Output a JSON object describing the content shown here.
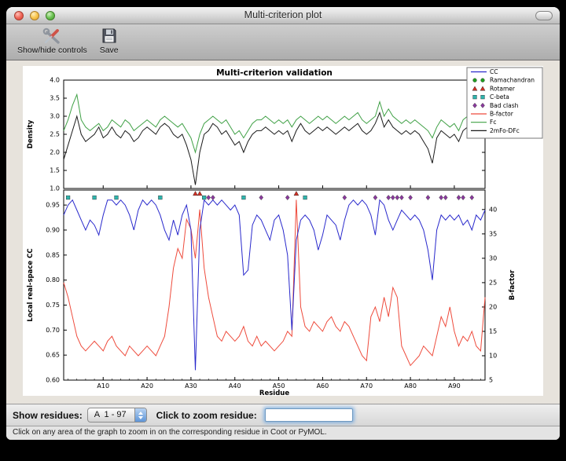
{
  "window": {
    "title": "Multi-criterion plot",
    "toolbar": {
      "buttons": [
        {
          "label": "Show/hide controls"
        },
        {
          "label": "Save"
        }
      ]
    },
    "controls": {
      "show_residues_label": "Show residues:",
      "residue_range_value": "A  1 - 97",
      "zoom_label": "Click to zoom residue:",
      "zoom_value": ""
    },
    "status_bar": "Click on any area of the graph to zoom in on the corresponding residue in Coot or PyMOL."
  },
  "chart_data": {
    "type": "line",
    "title": "Multi-criterion validation",
    "x_label": "Residue",
    "x_range": [
      1,
      97
    ],
    "x_tick_positions": [
      10,
      20,
      30,
      40,
      50,
      60,
      70,
      80,
      90
    ],
    "x_tick_labels": [
      "A10",
      "A20",
      "A30",
      "A40",
      "A50",
      "A60",
      "A70",
      "A80",
      "A90"
    ],
    "grid": false,
    "legend_position": "upper right",
    "legend": [
      {
        "label": "CC",
        "type": "line",
        "color": "#2929cc"
      },
      {
        "label": "Ramachandran",
        "type": "circle",
        "color": "#1f9e1f"
      },
      {
        "label": "Rotamer",
        "type": "triangle",
        "color": "#cf2f24"
      },
      {
        "label": "C-beta",
        "type": "square",
        "color": "#2fb5ae"
      },
      {
        "label": "Bad clash",
        "type": "diamond",
        "color": "#8b3a9e"
      },
      {
        "label": "B-factor",
        "type": "line",
        "color": "#ee4b3c"
      },
      {
        "label": "Fc",
        "type": "line",
        "color": "#3fa045"
      },
      {
        "label": "2mFo-DFc",
        "type": "line",
        "color": "#1a1a1a"
      }
    ],
    "top": {
      "y_label": "Density",
      "y_range": [
        1.0,
        4.0
      ],
      "y_ticks": [
        1.0,
        1.5,
        2.0,
        2.5,
        3.0,
        3.5,
        4.0
      ],
      "series": [
        {
          "name": "Fc",
          "color": "#3fa045",
          "values": [
            2.6,
            2.9,
            3.3,
            3.6,
            2.9,
            2.7,
            2.6,
            2.7,
            2.8,
            2.6,
            2.7,
            2.9,
            2.8,
            2.7,
            2.9,
            2.8,
            2.6,
            2.7,
            2.8,
            2.9,
            2.8,
            2.7,
            2.9,
            3.0,
            2.9,
            2.8,
            2.7,
            2.8,
            2.6,
            2.4,
            2.0,
            2.5,
            2.8,
            2.9,
            3.0,
            2.9,
            2.8,
            2.9,
            2.7,
            2.5,
            2.6,
            2.4,
            2.6,
            2.8,
            2.9,
            2.9,
            3.0,
            2.9,
            2.8,
            2.9,
            2.8,
            2.9,
            2.7,
            2.9,
            3.0,
            2.9,
            2.8,
            2.9,
            3.0,
            2.9,
            3.0,
            2.9,
            2.8,
            2.9,
            3.0,
            2.9,
            3.0,
            3.1,
            2.9,
            2.8,
            2.9,
            3.0,
            3.4,
            3.0,
            3.2,
            3.0,
            2.9,
            2.8,
            2.9,
            2.8,
            2.9,
            2.8,
            2.7,
            2.6,
            2.4,
            2.7,
            2.9,
            2.8,
            2.7,
            2.8,
            2.6,
            2.9,
            3.0,
            2.8,
            3.3,
            2.9,
            3.0
          ]
        },
        {
          "name": "2mFo-DFc",
          "color": "#1a1a1a",
          "values": [
            1.8,
            2.2,
            2.6,
            3.0,
            2.5,
            2.3,
            2.4,
            2.5,
            2.7,
            2.4,
            2.5,
            2.7,
            2.5,
            2.4,
            2.6,
            2.5,
            2.3,
            2.4,
            2.6,
            2.7,
            2.6,
            2.5,
            2.7,
            2.8,
            2.7,
            2.5,
            2.4,
            2.5,
            2.2,
            1.8,
            1.1,
            2.0,
            2.5,
            2.6,
            2.8,
            2.7,
            2.5,
            2.6,
            2.4,
            2.2,
            2.3,
            2.0,
            2.3,
            2.5,
            2.6,
            2.6,
            2.7,
            2.6,
            2.5,
            2.6,
            2.5,
            2.6,
            2.3,
            2.6,
            2.8,
            2.6,
            2.5,
            2.6,
            2.7,
            2.6,
            2.7,
            2.6,
            2.5,
            2.6,
            2.7,
            2.6,
            2.7,
            2.8,
            2.6,
            2.5,
            2.6,
            2.8,
            3.1,
            2.7,
            2.9,
            2.7,
            2.6,
            2.5,
            2.6,
            2.5,
            2.6,
            2.5,
            2.3,
            2.1,
            1.7,
            2.4,
            2.6,
            2.5,
            2.4,
            2.5,
            2.3,
            2.6,
            2.7,
            2.5,
            3.0,
            2.6,
            2.7
          ]
        }
      ]
    },
    "bottom": {
      "y_label_left": "Local real-space CC",
      "y_label_right": "B-factor",
      "y_range_left": [
        0.6,
        0.98
      ],
      "y_range_right": [
        5,
        44
      ],
      "y_ticks_left": [
        0.6,
        0.65,
        0.7,
        0.75,
        0.8,
        0.85,
        0.9,
        0.95
      ],
      "y_ticks_right": [
        5,
        10,
        15,
        20,
        25,
        30,
        35,
        40
      ],
      "series": [
        {
          "name": "B-factor",
          "axis": "right",
          "color": "#ee4b3c",
          "values": [
            25,
            22,
            18,
            14,
            12,
            11,
            12,
            13,
            12,
            11,
            13,
            14,
            12,
            11,
            10,
            12,
            11,
            10,
            11,
            12,
            11,
            10,
            12,
            14,
            20,
            28,
            32,
            30,
            38,
            36,
            30,
            40,
            28,
            22,
            18,
            14,
            13,
            15,
            14,
            13,
            14,
            16,
            13,
            12,
            14,
            12,
            13,
            12,
            11,
            12,
            13,
            15,
            14,
            42,
            20,
            16,
            15,
            17,
            16,
            15,
            17,
            18,
            16,
            15,
            17,
            16,
            14,
            12,
            10,
            9,
            18,
            20,
            17,
            22,
            18,
            24,
            22,
            12,
            10,
            8,
            9,
            10,
            12,
            11,
            10,
            14,
            18,
            16,
            20,
            15,
            12,
            14,
            13,
            15,
            12,
            11,
            22
          ]
        },
        {
          "name": "CC",
          "axis": "left",
          "color": "#2929cc",
          "values": [
            0.93,
            0.95,
            0.96,
            0.94,
            0.92,
            0.9,
            0.92,
            0.91,
            0.89,
            0.93,
            0.96,
            0.96,
            0.95,
            0.96,
            0.95,
            0.93,
            0.9,
            0.94,
            0.96,
            0.95,
            0.96,
            0.95,
            0.93,
            0.9,
            0.88,
            0.92,
            0.89,
            0.93,
            0.95,
            0.9,
            0.62,
            0.9,
            0.96,
            0.95,
            0.96,
            0.95,
            0.96,
            0.95,
            0.94,
            0.95,
            0.93,
            0.81,
            0.82,
            0.91,
            0.93,
            0.92,
            0.9,
            0.88,
            0.92,
            0.93,
            0.9,
            0.85,
            0.7,
            0.88,
            0.92,
            0.93,
            0.92,
            0.9,
            0.86,
            0.89,
            0.93,
            0.92,
            0.91,
            0.88,
            0.92,
            0.95,
            0.96,
            0.95,
            0.96,
            0.95,
            0.93,
            0.89,
            0.96,
            0.95,
            0.92,
            0.9,
            0.92,
            0.94,
            0.93,
            0.92,
            0.93,
            0.92,
            0.9,
            0.86,
            0.8,
            0.9,
            0.93,
            0.92,
            0.93,
            0.92,
            0.93,
            0.91,
            0.92,
            0.9,
            0.93,
            0.92,
            0.94
          ]
        }
      ],
      "markers": [
        {
          "name": "Rotamer",
          "shape": "triangle",
          "color": "#cf2f24",
          "y": 0.973,
          "residues": [
            31,
            32,
            54
          ]
        },
        {
          "name": "C-beta",
          "shape": "square",
          "color": "#2fb5ae",
          "y": 0.965,
          "residues": [
            2,
            8,
            13,
            23,
            33,
            42,
            56
          ]
        },
        {
          "name": "Bad clash",
          "shape": "diamond",
          "color": "#8b3a9e",
          "y": 0.965,
          "residues": [
            34,
            35,
            46,
            52,
            65,
            72,
            75,
            76,
            77,
            78,
            80,
            84,
            87,
            88,
            91,
            92,
            94
          ]
        }
      ]
    }
  }
}
